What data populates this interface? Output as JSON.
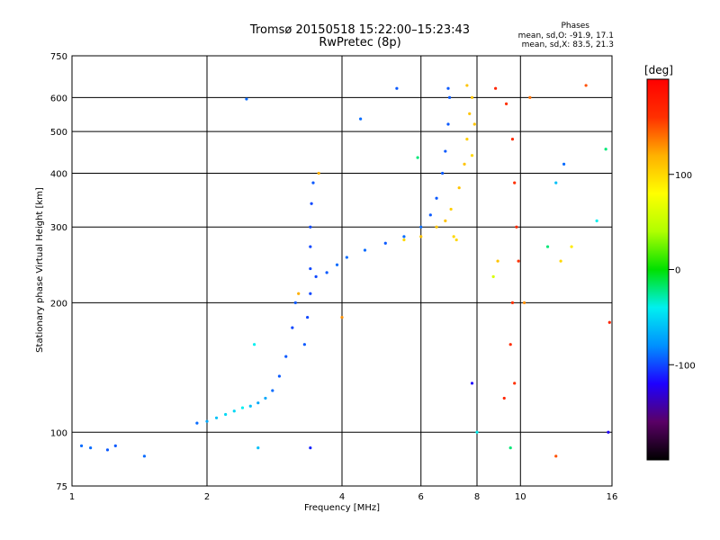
{
  "header": {
    "title_line1": "Tromsø 20150518 15:22:00–15:23:43",
    "title_line2": "RwPretec (8p)",
    "stats_title": "Phases",
    "stats_line1": "mean, sd,O: -91.9, 17.1",
    "stats_line2": "mean, sd,X:  83.5, 21.3"
  },
  "colorbar": {
    "unit": "[deg]",
    "tick_values": [
      100,
      0,
      -100
    ],
    "tick_labels": [
      "100",
      "0",
      "-100"
    ],
    "range": [
      -200,
      200
    ],
    "colors": [
      "#000000",
      "#5a0066",
      "#1e00ff",
      "#0090ff",
      "#00f0f0",
      "#00e000",
      "#b0ff00",
      "#ffff00",
      "#ffb000",
      "#ff3000",
      "#ff0000"
    ]
  },
  "chart_data": {
    "type": "scatter",
    "title": "Tromsø 20150518 15:22:00–15:23:43",
    "subtitle": "RwPretec (8p)",
    "xlabel": "Frequency [MHz]",
    "ylabel": "Stationary phase Virtual Height [km]",
    "xscale": "log",
    "yscale": "log",
    "xlim": [
      1,
      16
    ],
    "ylim": [
      75,
      750
    ],
    "xticks": [
      1,
      2,
      4,
      6,
      8,
      10,
      16
    ],
    "xtick_labels": [
      "1",
      "2",
      "4",
      "6",
      "8",
      "10",
      "16"
    ],
    "yticks": [
      75,
      100,
      200,
      300,
      400,
      500,
      600,
      750
    ],
    "ytick_labels": [
      "75",
      "100",
      "200",
      "300",
      "400",
      "500",
      "600",
      "750"
    ],
    "grid": true,
    "color_variable": "phase [deg]",
    "series": [
      {
        "points": [
          [
            1.05,
            93,
            -90
          ],
          [
            1.1,
            92,
            -90
          ],
          [
            1.2,
            91,
            -95
          ],
          [
            1.25,
            93,
            -95
          ],
          [
            1.45,
            88,
            -90
          ],
          [
            1.9,
            105,
            -90
          ],
          [
            2.0,
            106,
            -70
          ],
          [
            2.1,
            108,
            -60
          ],
          [
            2.2,
            110,
            -50
          ],
          [
            2.3,
            112,
            -50
          ],
          [
            2.4,
            114,
            -40
          ],
          [
            2.5,
            115,
            -60
          ],
          [
            2.6,
            117,
            -70
          ],
          [
            2.7,
            120,
            -70
          ],
          [
            2.55,
            160,
            -40
          ],
          [
            2.8,
            125,
            -90
          ],
          [
            2.9,
            135,
            -95
          ],
          [
            3.0,
            150,
            -95
          ],
          [
            3.1,
            175,
            -100
          ],
          [
            3.15,
            200,
            -95
          ],
          [
            3.3,
            160,
            -95
          ],
          [
            3.35,
            185,
            -100
          ],
          [
            3.4,
            210,
            -100
          ],
          [
            3.4,
            240,
            -100
          ],
          [
            3.4,
            270,
            -100
          ],
          [
            3.4,
            300,
            -100
          ],
          [
            3.42,
            340,
            -100
          ],
          [
            3.45,
            380,
            -95
          ],
          [
            3.5,
            230,
            -100
          ],
          [
            3.7,
            235,
            -95
          ],
          [
            3.9,
            245,
            -90
          ],
          [
            4.1,
            255,
            -90
          ],
          [
            4.5,
            265,
            -90
          ],
          [
            5.0,
            275,
            -95
          ],
          [
            5.5,
            285,
            -90
          ],
          [
            6.0,
            300,
            -90
          ],
          [
            6.3,
            320,
            -95
          ],
          [
            6.5,
            350,
            -95
          ],
          [
            6.7,
            400,
            -95
          ],
          [
            6.8,
            450,
            -95
          ],
          [
            6.9,
            520,
            -95
          ],
          [
            6.95,
            600,
            -95
          ],
          [
            6.9,
            630,
            -95
          ],
          [
            5.3,
            630,
            -95
          ],
          [
            4.4,
            535,
            -90
          ],
          [
            2.45,
            595,
            -90
          ]
        ]
      },
      {
        "points": [
          [
            5.5,
            280,
            100
          ],
          [
            6.0,
            285,
            110
          ],
          [
            6.5,
            300,
            110
          ],
          [
            7.0,
            330,
            105
          ],
          [
            7.3,
            370,
            110
          ],
          [
            7.5,
            420,
            110
          ],
          [
            7.6,
            480,
            105
          ],
          [
            7.7,
            550,
            110
          ],
          [
            7.8,
            600,
            110
          ],
          [
            7.6,
            640,
            110
          ],
          [
            7.2,
            280,
            100
          ],
          [
            6.8,
            310,
            110
          ],
          [
            7.1,
            285,
            100
          ],
          [
            7.9,
            520,
            110
          ],
          [
            7.8,
            440,
            100
          ]
        ]
      },
      {
        "points": [
          [
            8.8,
            630,
            170
          ],
          [
            9.3,
            580,
            160
          ],
          [
            9.6,
            480,
            165
          ],
          [
            9.7,
            380,
            160
          ],
          [
            9.8,
            300,
            165
          ],
          [
            9.9,
            250,
            160
          ],
          [
            9.6,
            200,
            160
          ],
          [
            9.5,
            160,
            165
          ],
          [
            9.7,
            130,
            160
          ],
          [
            9.2,
            120,
            170
          ],
          [
            10.5,
            600,
            140
          ],
          [
            12.0,
            380,
            -60
          ],
          [
            12.5,
            420,
            -90
          ],
          [
            13.0,
            270,
            90
          ],
          [
            14.0,
            640,
            150
          ],
          [
            15.8,
            180,
            170
          ],
          [
            15.5,
            455,
            -20
          ],
          [
            14.8,
            310,
            -40
          ],
          [
            10.2,
            200,
            130
          ],
          [
            8.7,
            230,
            60
          ],
          [
            8.9,
            250,
            110
          ],
          [
            11.5,
            270,
            -20
          ],
          [
            12.3,
            250,
            100
          ],
          [
            15.7,
            100,
            -120
          ],
          [
            9.5,
            92,
            -20
          ],
          [
            7.8,
            130,
            -120
          ],
          [
            8.0,
            100,
            -40
          ],
          [
            4.0,
            185,
            130
          ],
          [
            3.2,
            210,
            120
          ],
          [
            3.55,
            400,
            120
          ],
          [
            5.9,
            435,
            -20
          ],
          [
            2.6,
            92,
            -60
          ],
          [
            3.4,
            92,
            -110
          ],
          [
            12.0,
            88,
            150
          ]
        ]
      }
    ]
  }
}
